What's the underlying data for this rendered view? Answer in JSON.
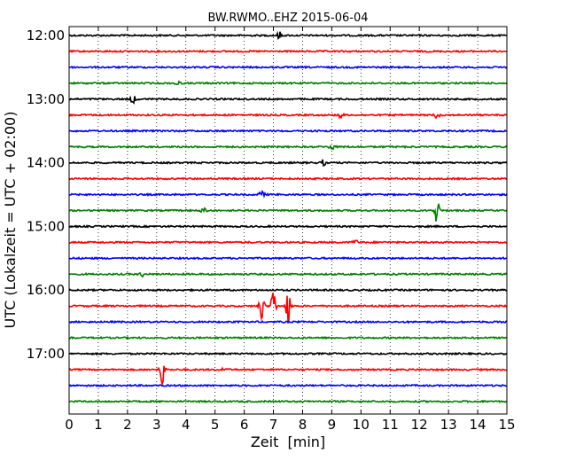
{
  "chart_data": {
    "type": "line",
    "title": "BW.RWMO..EHZ 2015-06-04",
    "xlabel": "Zeit  [min]",
    "ylabel": "UTC (Lokalzeit = UTC + 02:00)",
    "xlim": [
      0,
      15
    ],
    "x_ticks": [
      "0",
      "1",
      "2",
      "3",
      "4",
      "5",
      "6",
      "7",
      "8",
      "9",
      "10",
      "11",
      "12",
      "13",
      "14",
      "15"
    ],
    "y_tick_labels": [
      "12:00",
      "13:00",
      "14:00",
      "15:00",
      "16:00",
      "17:00"
    ],
    "grid": "vertical dotted at each minute",
    "trace_colors": [
      "#000000",
      "#ff0000",
      "#0000ff",
      "#008000"
    ],
    "traces": [
      {
        "start": "12:00",
        "events": [
          {
            "minute": 7.2,
            "amp": 0.25
          }
        ]
      },
      {
        "start": "12:15",
        "events": []
      },
      {
        "start": "12:30",
        "events": []
      },
      {
        "start": "12:45",
        "events": [
          {
            "minute": 3.7,
            "amp": 0.2
          }
        ]
      },
      {
        "start": "13:00",
        "events": [
          {
            "minute": 2.2,
            "amp": 0.35
          }
        ]
      },
      {
        "start": "13:15",
        "events": [
          {
            "minute": 9.3,
            "amp": 0.25
          },
          {
            "minute": 12.6,
            "amp": 0.25
          }
        ]
      },
      {
        "start": "13:30",
        "events": []
      },
      {
        "start": "13:45",
        "events": [
          {
            "minute": 9.0,
            "amp": 0.25
          }
        ]
      },
      {
        "start": "14:00",
        "events": [
          {
            "minute": 8.7,
            "amp": 0.2
          }
        ]
      },
      {
        "start": "14:15",
        "events": []
      },
      {
        "start": "14:30",
        "events": [
          {
            "minute": 6.6,
            "amp": 0.35
          }
        ]
      },
      {
        "start": "14:45",
        "events": [
          {
            "minute": 4.6,
            "amp": 0.2
          },
          {
            "minute": 12.6,
            "amp": 1.0
          }
        ]
      },
      {
        "start": "15:00",
        "events": []
      },
      {
        "start": "15:15",
        "events": [
          {
            "minute": 9.8,
            "amp": 0.2
          }
        ]
      },
      {
        "start": "15:30",
        "events": []
      },
      {
        "start": "15:45",
        "events": [
          {
            "minute": 2.5,
            "amp": 0.15
          }
        ]
      },
      {
        "start": "16:00",
        "events": []
      },
      {
        "start": "16:15",
        "events": [
          {
            "minute": 6.6,
            "amp": 1.1
          },
          {
            "minute": 7.0,
            "amp": 1.4
          },
          {
            "minute": 7.5,
            "amp": 1.2
          }
        ]
      },
      {
        "start": "16:30",
        "events": []
      },
      {
        "start": "16:45",
        "events": []
      },
      {
        "start": "17:00",
        "events": []
      },
      {
        "start": "17:15",
        "events": [
          {
            "minute": 3.2,
            "amp": 1.2
          },
          {
            "minute": 5.3,
            "amp": 0.15
          }
        ]
      },
      {
        "start": "17:30",
        "events": []
      },
      {
        "start": "17:45",
        "events": []
      }
    ]
  }
}
